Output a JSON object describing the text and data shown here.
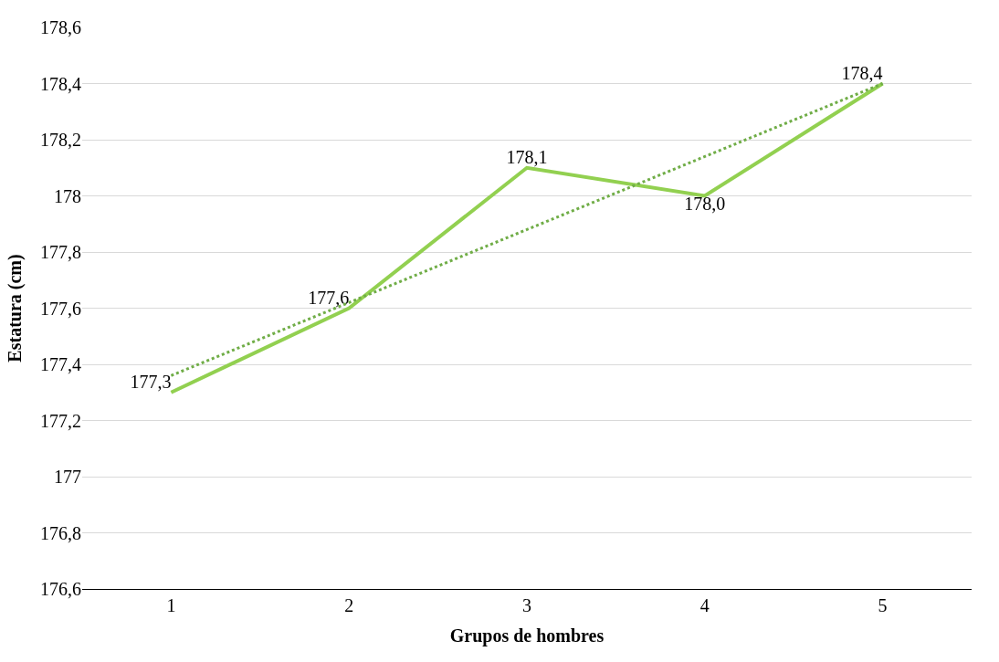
{
  "chart_data": {
    "type": "line",
    "xlabel": "Grupos de hombres",
    "ylabel": "Estatura (cm)",
    "x": [
      1,
      2,
      3,
      4,
      5
    ],
    "xlim": [
      0.5,
      5.5
    ],
    "xticks": [
      1,
      2,
      3,
      4,
      5
    ],
    "ylim": [
      176.6,
      178.6
    ],
    "yticks": [
      {
        "value": 176.6,
        "label": "176,6"
      },
      {
        "value": 176.8,
        "label": "176,8"
      },
      {
        "value": 177,
        "label": "177"
      },
      {
        "value": 177.2,
        "label": "177,2"
      },
      {
        "value": 177.4,
        "label": "177,4"
      },
      {
        "value": 177.6,
        "label": "177,6"
      },
      {
        "value": 177.8,
        "label": "177,8"
      },
      {
        "value": 178,
        "label": "178"
      },
      {
        "value": 178.2,
        "label": "178,2"
      },
      {
        "value": 178.4,
        "label": "178,4"
      },
      {
        "value": 178.6,
        "label": "178,6"
      }
    ],
    "series": [
      {
        "color": "#92d050",
        "values": [
          177.3,
          177.6,
          178.1,
          178.0,
          178.4
        ],
        "value_labels": [
          "177,3",
          "177,6",
          "178,1",
          "178,0",
          "178,4"
        ],
        "line_style": "solid"
      },
      {
        "type": "line",
        "color": "#70ad47",
        "x": [
          1,
          5
        ],
        "values": [
          177.36,
          178.4
        ],
        "line_style": "dotted"
      }
    ],
    "grid": "y",
    "marker": "none"
  }
}
